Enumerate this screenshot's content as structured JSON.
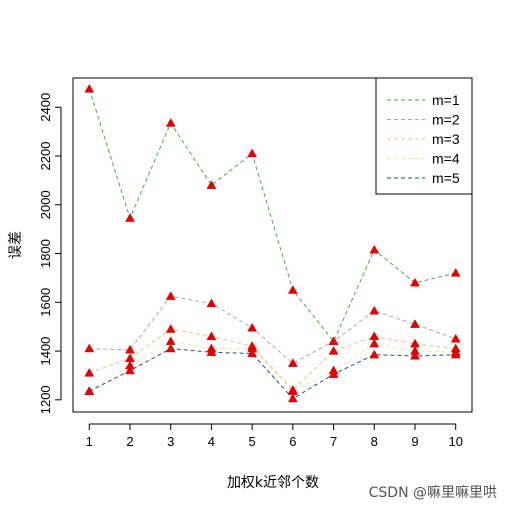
{
  "chart_data": {
    "type": "line",
    "title": "",
    "xlabel": "加权k近邻个数",
    "ylabel": "误差",
    "x": [
      1,
      2,
      3,
      4,
      5,
      6,
      7,
      8,
      9,
      10
    ],
    "xlim": [
      0.6,
      10.4
    ],
    "ylim": [
      1150,
      2520
    ],
    "yticks": [
      1200,
      1400,
      1600,
      1800,
      2000,
      2200,
      2400
    ],
    "grid": false,
    "legend_position": "top-right",
    "marker": "triangle",
    "marker_color": "#e60000",
    "series": [
      {
        "name": "m=1",
        "color": "#5aa05a",
        "values": [
          2475,
          1945,
          2335,
          2080,
          2210,
          1650,
          1440,
          1815,
          1680,
          1720
        ]
      },
      {
        "name": "m=2",
        "color": "#c0a0a8",
        "values": [
          1410,
          1405,
          1625,
          1595,
          1495,
          1350,
          1440,
          1565,
          1510,
          1450
        ]
      },
      {
        "name": "m=3",
        "color": "#e8c0a0",
        "values": [
          1310,
          1370,
          1490,
          1460,
          1420,
          1240,
          1400,
          1460,
          1430,
          1410
        ]
      },
      {
        "name": "m=4",
        "color": "#f0e8a0",
        "values": [
          1235,
          1340,
          1440,
          1410,
          1410,
          1235,
          1320,
          1430,
          1400,
          1395
        ]
      },
      {
        "name": "m=5",
        "color": "#2a4a9a",
        "values": [
          1235,
          1320,
          1410,
          1395,
          1390,
          1205,
          1305,
          1385,
          1380,
          1385
        ]
      }
    ]
  },
  "watermark": "CSDN @嘛里嘛里哄"
}
